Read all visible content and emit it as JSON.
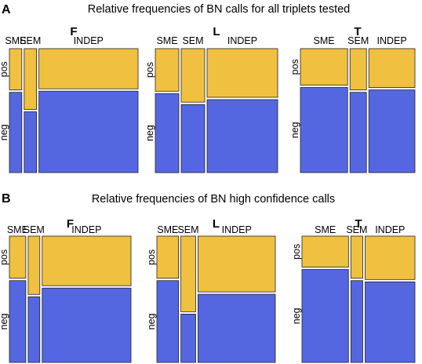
{
  "colors": {
    "pos": "#f0c040",
    "neg": "#5567e0",
    "stroke": "#222222"
  },
  "sections": [
    {
      "letter": "A",
      "title": "Relative frequencies of BN calls for all triplets tested"
    },
    {
      "letter": "B",
      "title": "Relative frequencies of BN high confidence calls"
    }
  ],
  "chart_data": [
    {
      "type": "mosaic",
      "section": "A",
      "panel": "F",
      "columns": [
        "SME",
        "SEM",
        "INDEP"
      ],
      "column_widths": [
        0.1,
        0.1,
        0.8
      ],
      "rows": [
        "pos",
        "neg"
      ],
      "pos_fraction": [
        0.34,
        0.5,
        0.33
      ]
    },
    {
      "type": "mosaic",
      "section": "A",
      "panel": "L",
      "columns": [
        "SME",
        "SEM",
        "INDEP"
      ],
      "column_widths": [
        0.2,
        0.2,
        0.6
      ],
      "rows": [
        "pos",
        "neg"
      ],
      "pos_fraction": [
        0.35,
        0.44,
        0.4
      ]
    },
    {
      "type": "mosaic",
      "section": "A",
      "panel": "T",
      "columns": [
        "SME",
        "SEM",
        "INDEP"
      ],
      "column_widths": [
        0.43,
        0.15,
        0.42
      ],
      "rows": [
        "pos",
        "neg"
      ],
      "pos_fraction": [
        0.3,
        0.34,
        0.32
      ]
    },
    {
      "type": "mosaic",
      "section": "B",
      "panel": "F",
      "columns": [
        "SME",
        "SEM",
        "INDEP"
      ],
      "column_widths": [
        0.14,
        0.1,
        0.76
      ],
      "rows": [
        "pos",
        "neg"
      ],
      "pos_fraction": [
        0.34,
        0.47,
        0.4
      ]
    },
    {
      "type": "mosaic",
      "section": "B",
      "panel": "L",
      "columns": [
        "SME",
        "SEM",
        "INDEP"
      ],
      "column_widths": [
        0.19,
        0.13,
        0.68
      ],
      "rows": [
        "pos",
        "neg"
      ],
      "pos_fraction": [
        0.34,
        0.61,
        0.45
      ]
    },
    {
      "type": "mosaic",
      "section": "B",
      "panel": "T",
      "columns": [
        "SME",
        "SEM",
        "INDEP"
      ],
      "column_widths": [
        0.43,
        0.11,
        0.46
      ],
      "rows": [
        "pos",
        "neg"
      ],
      "pos_fraction": [
        0.25,
        0.34,
        0.35
      ]
    }
  ]
}
